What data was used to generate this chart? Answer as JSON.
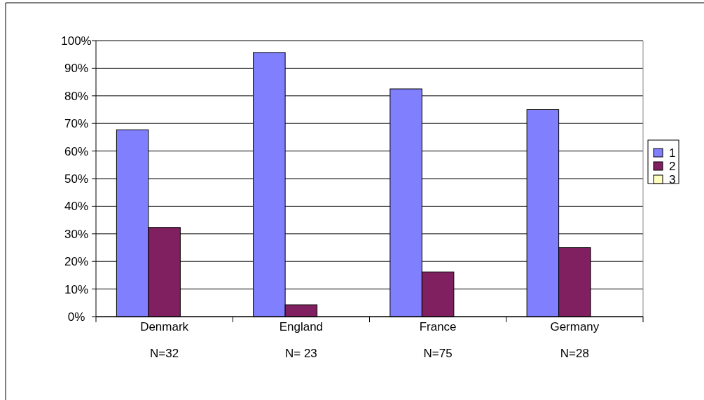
{
  "chart_data": {
    "type": "bar",
    "categories": [
      "Denmark\nN=32",
      "England\nN= 23",
      "France\nN=75",
      "Germany\nN=28"
    ],
    "series": [
      {
        "name": "1",
        "color": "#8080ff",
        "values": [
          67.7,
          95.7,
          82.5,
          75
        ]
      },
      {
        "name": "2",
        "color": "#802060",
        "values": [
          32.3,
          4.3,
          16.2,
          25
        ]
      },
      {
        "name": "3",
        "color": "#ffffc0",
        "values": [
          0,
          0,
          0,
          0
        ]
      }
    ],
    "ylim": [
      0,
      100
    ],
    "yticks": [
      {
        "value": 0,
        "label": "0%"
      },
      {
        "value": 10,
        "label": "10%"
      },
      {
        "value": 20,
        "label": "20%"
      },
      {
        "value": 30,
        "label": "30%"
      },
      {
        "value": 40,
        "label": "40%"
      },
      {
        "value": 50,
        "label": "50%"
      },
      {
        "value": 60,
        "label": "60%"
      },
      {
        "value": 70,
        "label": "70%"
      },
      {
        "value": 80,
        "label": "80%"
      },
      {
        "value": 90,
        "label": "90%"
      },
      {
        "value": 100,
        "label": "100%"
      }
    ],
    "grid": "y",
    "legend": "right"
  }
}
